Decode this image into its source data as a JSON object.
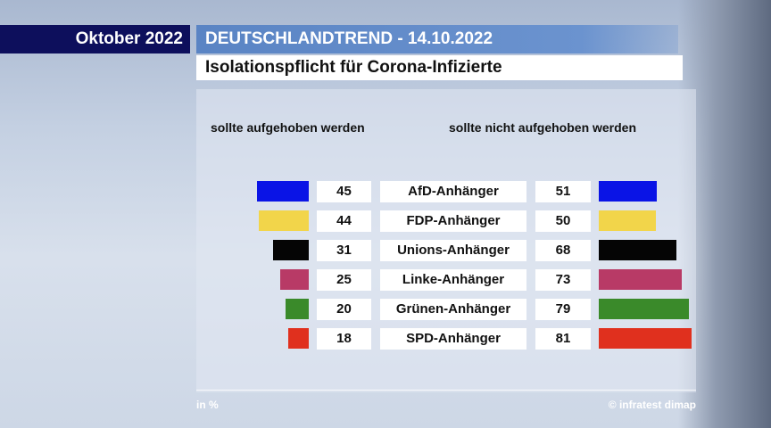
{
  "header": {
    "month": "Oktober 2022",
    "trend": "DEUTSCHLANDTREND - 14.10.2022",
    "subtitle": "Isolationspflicht für Corona-Infizierte"
  },
  "footer": {
    "unit": "in %",
    "source": "© infratest dimap"
  },
  "chart_data": {
    "type": "bar",
    "title": "Isolationspflicht für Corona-Infizierte",
    "unit": "%",
    "categories": [
      "AfD-Anhänger",
      "FDP-Anhänger",
      "Unions-Anhänger",
      "Linke-Anhänger",
      "Grünen-Anhänger",
      "SPD-Anhänger"
    ],
    "colors": [
      "#0a14e6",
      "#f2d54a",
      "#050505",
      "#b83a66",
      "#3a8a2a",
      "#e0301e"
    ],
    "series": [
      {
        "name": "sollte aufgehoben werden",
        "values": [
          45,
          44,
          31,
          25,
          20,
          18
        ]
      },
      {
        "name": "sollte nicht aufgehoben werden",
        "values": [
          51,
          50,
          68,
          73,
          79,
          81
        ]
      }
    ]
  }
}
